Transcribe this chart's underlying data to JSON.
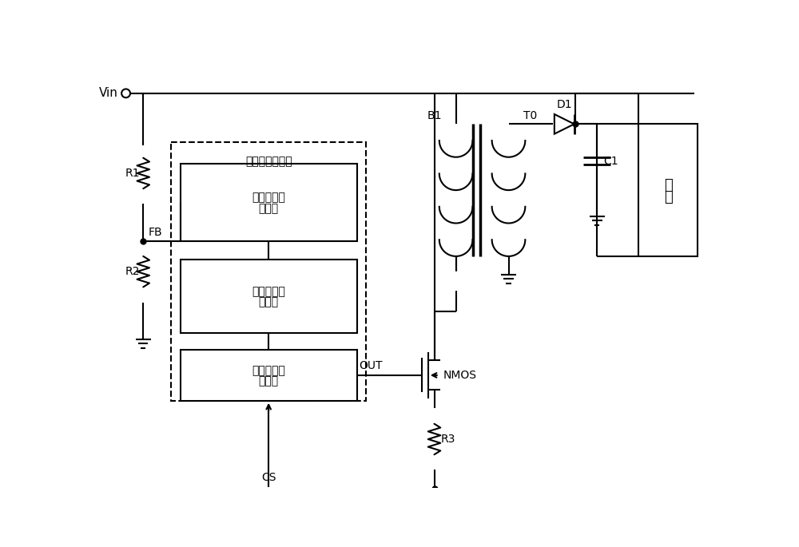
{
  "bg_color": "#ffffff",
  "line_color": "#000000",
  "lw": 1.5,
  "fig_width": 10.0,
  "fig_height": 6.85,
  "labels": {
    "Vin": "Vin",
    "R1": "R1",
    "R2": "R2",
    "FB": "FB",
    "B1": "B1",
    "T0": "T0",
    "D1": "D1",
    "C1": "C1",
    "NMOS": "NMOS",
    "R3": "R3",
    "OUT": "OUT",
    "CS": "CS",
    "load": "负载",
    "controller": "恒流驱动控制器",
    "block1_line1": "消磁电压采",
    "block1_line2": "样电路",
    "block2_line1": "消磁时间检",
    "block2_line2": "测电路",
    "block3_line1": "恒流逻辑控",
    "block3_line2": "制电路"
  }
}
